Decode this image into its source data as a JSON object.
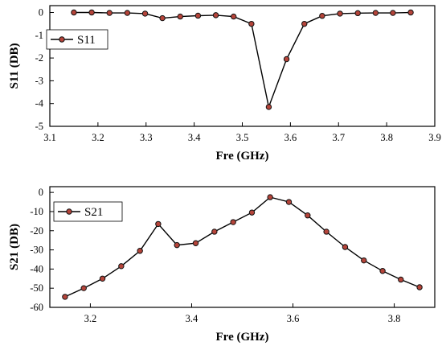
{
  "chart_data": [
    {
      "type": "line",
      "xlabel": "Fre (GHz)",
      "ylabel": "S11 (DB)",
      "xlim": [
        3.1,
        3.9
      ],
      "ylim": [
        -5,
        0.3
      ],
      "x_ticks": [
        3.1,
        3.2,
        3.3,
        3.4,
        3.5,
        3.6,
        3.7,
        3.8,
        3.9
      ],
      "x_tick_labels": [
        "3.1",
        "3.2",
        "3.3",
        "3.4",
        "3.5",
        "3.6",
        "3.7",
        "3.8",
        "3.9"
      ],
      "y_ticks": [
        0,
        -1,
        -2,
        -3,
        -4,
        -5
      ],
      "y_tick_labels": [
        "0",
        "-1",
        "-2",
        "-3",
        "-4",
        "-5"
      ],
      "legend_position": "top-left",
      "grid": false,
      "series": [
        {
          "name": "S11",
          "color": "#000000",
          "marker_color": "#b5443a",
          "x": [
            3.15,
            3.187,
            3.224,
            3.261,
            3.298,
            3.334,
            3.371,
            3.408,
            3.445,
            3.482,
            3.519,
            3.555,
            3.592,
            3.629,
            3.666,
            3.703,
            3.74,
            3.777,
            3.813,
            3.85
          ],
          "values": [
            0,
            0,
            -0.02,
            -0.02,
            -0.05,
            -0.25,
            -0.18,
            -0.14,
            -0.12,
            -0.18,
            -0.5,
            -4.15,
            -2.05,
            -0.5,
            -0.15,
            -0.05,
            -0.03,
            -0.02,
            -0.02,
            0
          ]
        }
      ]
    },
    {
      "type": "line",
      "xlabel": "Fre (GHz)",
      "ylabel": "S21 (DB)",
      "xlim": [
        3.12,
        3.88
      ],
      "ylim": [
        -60,
        3
      ],
      "x_ticks": [
        3.2,
        3.4,
        3.6,
        3.8
      ],
      "x_tick_labels": [
        "3.2",
        "3.4",
        "3.6",
        "3.8"
      ],
      "y_ticks": [
        0,
        -10,
        -20,
        -30,
        -40,
        -50,
        -60
      ],
      "y_tick_labels": [
        "0",
        "-10",
        "-20",
        "-30",
        "-40",
        "-50",
        "-60"
      ],
      "legend_position": "top-left",
      "grid": false,
      "series": [
        {
          "name": "S21",
          "color": "#000000",
          "marker_color": "#b5443a",
          "x": [
            3.15,
            3.187,
            3.224,
            3.261,
            3.298,
            3.334,
            3.371,
            3.408,
            3.445,
            3.482,
            3.519,
            3.555,
            3.592,
            3.629,
            3.666,
            3.703,
            3.74,
            3.777,
            3.813,
            3.85
          ],
          "values": [
            -54.5,
            -50,
            -45,
            -38.5,
            -30.5,
            -16.5,
            -27.5,
            -26.5,
            -20.5,
            -15.5,
            -10.5,
            -2.5,
            -5,
            -12,
            -20.5,
            -28.5,
            -35.5,
            -41,
            -45.5,
            -49.5
          ]
        }
      ]
    }
  ]
}
